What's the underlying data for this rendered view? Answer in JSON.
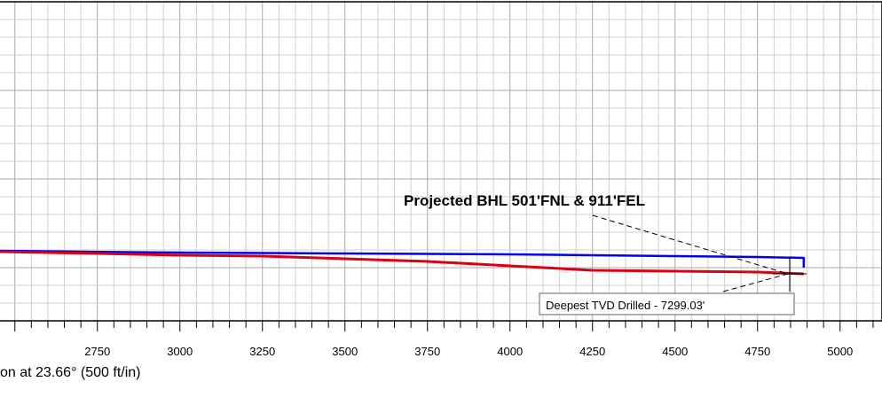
{
  "chart_data": {
    "type": "line",
    "title": "",
    "xlabel": "on at 23.66° (500 ft/in)",
    "ylabel": "",
    "xlim": [
      2455,
      5127
    ],
    "x_ticks": [
      2750,
      3000,
      3250,
      3500,
      3750,
      4000,
      4250,
      4500,
      4750,
      5000
    ],
    "grid": true,
    "series": [
      {
        "color": "#0000ee",
        "x": [
          2455,
          2700,
          3000,
          3250,
          3500,
          3750,
          4000,
          4250,
          4500,
          4750,
          4890,
          4890
        ],
        "y": [
          283,
          284,
          285,
          285.5,
          286,
          286.5,
          287,
          288,
          289,
          290,
          291,
          302
        ]
      },
      {
        "color": "#dd0011",
        "x": [
          2455,
          2600,
          2750,
          3000,
          3250,
          3500,
          3750,
          4000,
          4250,
          4500,
          4750,
          4890
        ],
        "y": [
          284,
          285,
          286,
          288,
          289,
          292,
          295,
          300,
          305,
          306,
          307,
          309
        ]
      }
    ],
    "annotations": {
      "bhl_label": "Projected BHL 501'FNL & 911'FEL",
      "tvd_label": "Deepest TVD Drilled - 7299.03'"
    }
  }
}
